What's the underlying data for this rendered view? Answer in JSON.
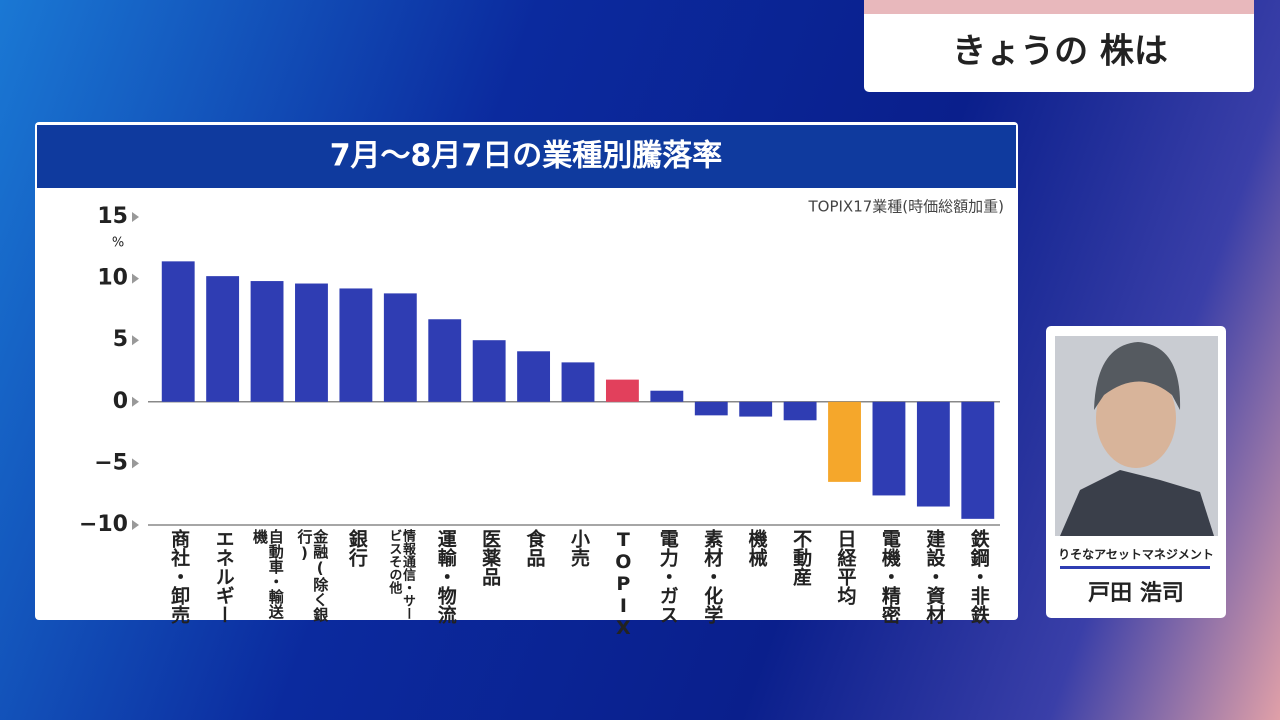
{
  "header": {
    "title": "きょうの 株は"
  },
  "chart_data": {
    "type": "bar",
    "title": "7月〜8月7日の業種別騰落率",
    "note": "TOPIX17業種(時価総額加重)",
    "y_unit": "%",
    "categories": [
      "商社・卸売",
      "エネルギー",
      "自動車・輸送機",
      "金融(除く銀行)",
      "銀行",
      "情報通信・サービスその他",
      "運輸・物流",
      "医薬品",
      "食品",
      "小売",
      "TOPIX",
      "電力・ガス",
      "素材・化学",
      "機械",
      "不動産",
      "日経平均",
      "電機・精密",
      "建設・資材",
      "鉄鋼・非鉄"
    ],
    "values": [
      11.4,
      10.2,
      9.8,
      9.6,
      9.2,
      8.8,
      6.7,
      5.0,
      4.1,
      3.2,
      1.8,
      0.9,
      -1.1,
      -1.2,
      -1.5,
      -6.5,
      -7.6,
      -8.5,
      -9.5
    ],
    "color": "#2f3db3",
    "colors": [
      "#2f3db3",
      "#2f3db3",
      "#2f3db3",
      "#2f3db3",
      "#2f3db3",
      "#2f3db3",
      "#2f3db3",
      "#2f3db3",
      "#2f3db3",
      "#2f3db3",
      "#e2405c",
      "#2f3db3",
      "#2f3db3",
      "#2f3db3",
      "#2f3db3",
      "#f5a72b",
      "#2f3db3",
      "#2f3db3",
      "#2f3db3"
    ],
    "ylim": [
      -10,
      15
    ],
    "yticks": [
      15,
      10,
      5,
      0,
      {
        "value": -5,
        "label": "−5"
      },
      {
        "value": -10,
        "label": "−10"
      }
    ]
  },
  "guest": {
    "company": "りそなアセットマネジメント",
    "name": "戸田 浩司"
  }
}
